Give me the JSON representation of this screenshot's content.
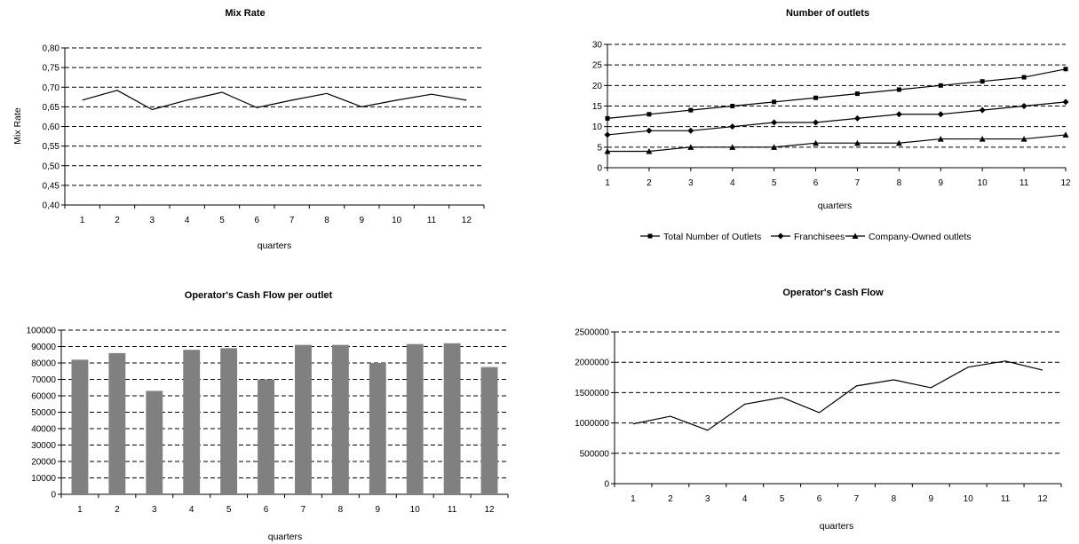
{
  "colors": {
    "line": "#000000",
    "bar": "#808080",
    "grid": "#000000",
    "axis": "#000000"
  },
  "chart_data": [
    {
      "type": "line",
      "title": "Mix Rate",
      "xlabel": "quarters",
      "ylabel": "Mix Rate",
      "categories": [
        "1",
        "2",
        "3",
        "4",
        "5",
        "6",
        "7",
        "8",
        "9",
        "10",
        "11",
        "12"
      ],
      "ylim": [
        0.4,
        0.8
      ],
      "yticks": [
        "0,40",
        "0,45",
        "0,50",
        "0,55",
        "0,60",
        "0,65",
        "0,70",
        "0,75",
        "0,80"
      ],
      "grid": true,
      "series": [
        {
          "values": [
            0.667,
            0.692,
            0.643,
            0.667,
            0.687,
            0.648,
            0.667,
            0.684,
            0.65,
            0.667,
            0.682,
            0.667
          ]
        }
      ]
    },
    {
      "type": "line",
      "title": "Number of outlets",
      "xlabel": "quarters",
      "ylabel": "",
      "categories": [
        "1",
        "2",
        "3",
        "4",
        "5",
        "6",
        "7",
        "8",
        "9",
        "10",
        "11",
        "12"
      ],
      "ylim": [
        0,
        30
      ],
      "yticks": [
        "0",
        "5",
        "10",
        "15",
        "20",
        "25",
        "30"
      ],
      "grid": true,
      "legend": "bottom",
      "series": [
        {
          "name": "Total Number of Outlets",
          "marker": "square",
          "values": [
            12,
            13,
            14,
            15,
            16,
            17,
            18,
            19,
            20,
            21,
            22,
            24
          ]
        },
        {
          "name": "Franchisees",
          "marker": "diamond",
          "values": [
            8,
            9,
            9,
            10,
            11,
            11,
            12,
            13,
            13,
            14,
            15,
            16
          ]
        },
        {
          "name": "Company-Owned outlets",
          "marker": "triangle",
          "values": [
            4,
            4,
            5,
            5,
            5,
            6,
            6,
            6,
            7,
            7,
            7,
            8
          ]
        }
      ]
    },
    {
      "type": "bar",
      "title": "Operator's Cash Flow per outlet",
      "xlabel": "quarters",
      "ylabel": "",
      "categories": [
        "1",
        "2",
        "3",
        "4",
        "5",
        "6",
        "7",
        "8",
        "9",
        "10",
        "11",
        "12"
      ],
      "ylim": [
        0,
        100000
      ],
      "yticks": [
        "0",
        "10000",
        "20000",
        "30000",
        "40000",
        "50000",
        "60000",
        "70000",
        "80000",
        "90000",
        "100000"
      ],
      "grid": true,
      "values": [
        82000,
        86000,
        63000,
        88000,
        89000,
        70000,
        91000,
        91000,
        80000,
        91500,
        92000,
        77500
      ]
    },
    {
      "type": "line",
      "title": "Operator's Cash Flow",
      "xlabel": "quarters",
      "ylabel": "",
      "categories": [
        "1",
        "2",
        "3",
        "4",
        "5",
        "6",
        "7",
        "8",
        "9",
        "10",
        "11",
        "12"
      ],
      "ylim": [
        0,
        2500000
      ],
      "yticks": [
        "0",
        "500000",
        "1000000",
        "1500000",
        "2000000",
        "2500000"
      ],
      "grid": true,
      "series": [
        {
          "values": [
            985000,
            1110000,
            880000,
            1310000,
            1420000,
            1170000,
            1610000,
            1710000,
            1580000,
            1920000,
            2020000,
            1870000
          ]
        }
      ]
    }
  ]
}
